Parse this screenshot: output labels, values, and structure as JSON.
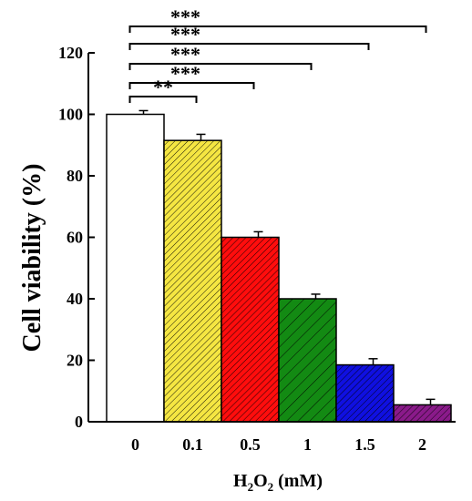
{
  "chart_data": {
    "type": "bar",
    "categories": [
      "0",
      "0.1",
      "0.5",
      "1",
      "1.5",
      "2"
    ],
    "values": [
      100,
      91.5,
      60,
      40,
      18.5,
      5.5
    ],
    "errors": [
      1.2,
      2.0,
      1.8,
      1.5,
      2.0,
      1.8
    ],
    "colors": [
      "#ffffff",
      "#f5e642",
      "#ff0d0d",
      "#138a13",
      "#1010e0",
      "#8a1a8a"
    ],
    "hatched": [
      false,
      true,
      true,
      true,
      true,
      true
    ],
    "ylabel": "Cell viability  (%)",
    "xlabel": {
      "prefix": "H",
      "sub1": "2",
      "mid": "O",
      "sub2": "2",
      "suffix": " (mM)"
    },
    "ylim": [
      0,
      120
    ],
    "yticks": [
      0,
      20,
      40,
      60,
      80,
      100,
      120
    ],
    "significance": [
      {
        "from": 0,
        "to": 1,
        "label": "**"
      },
      {
        "from": 0,
        "to": 2,
        "label": "***"
      },
      {
        "from": 0,
        "to": 3,
        "label": "***"
      },
      {
        "from": 0,
        "to": 4,
        "label": "***"
      },
      {
        "from": 0,
        "to": 5,
        "label": "***"
      }
    ]
  }
}
